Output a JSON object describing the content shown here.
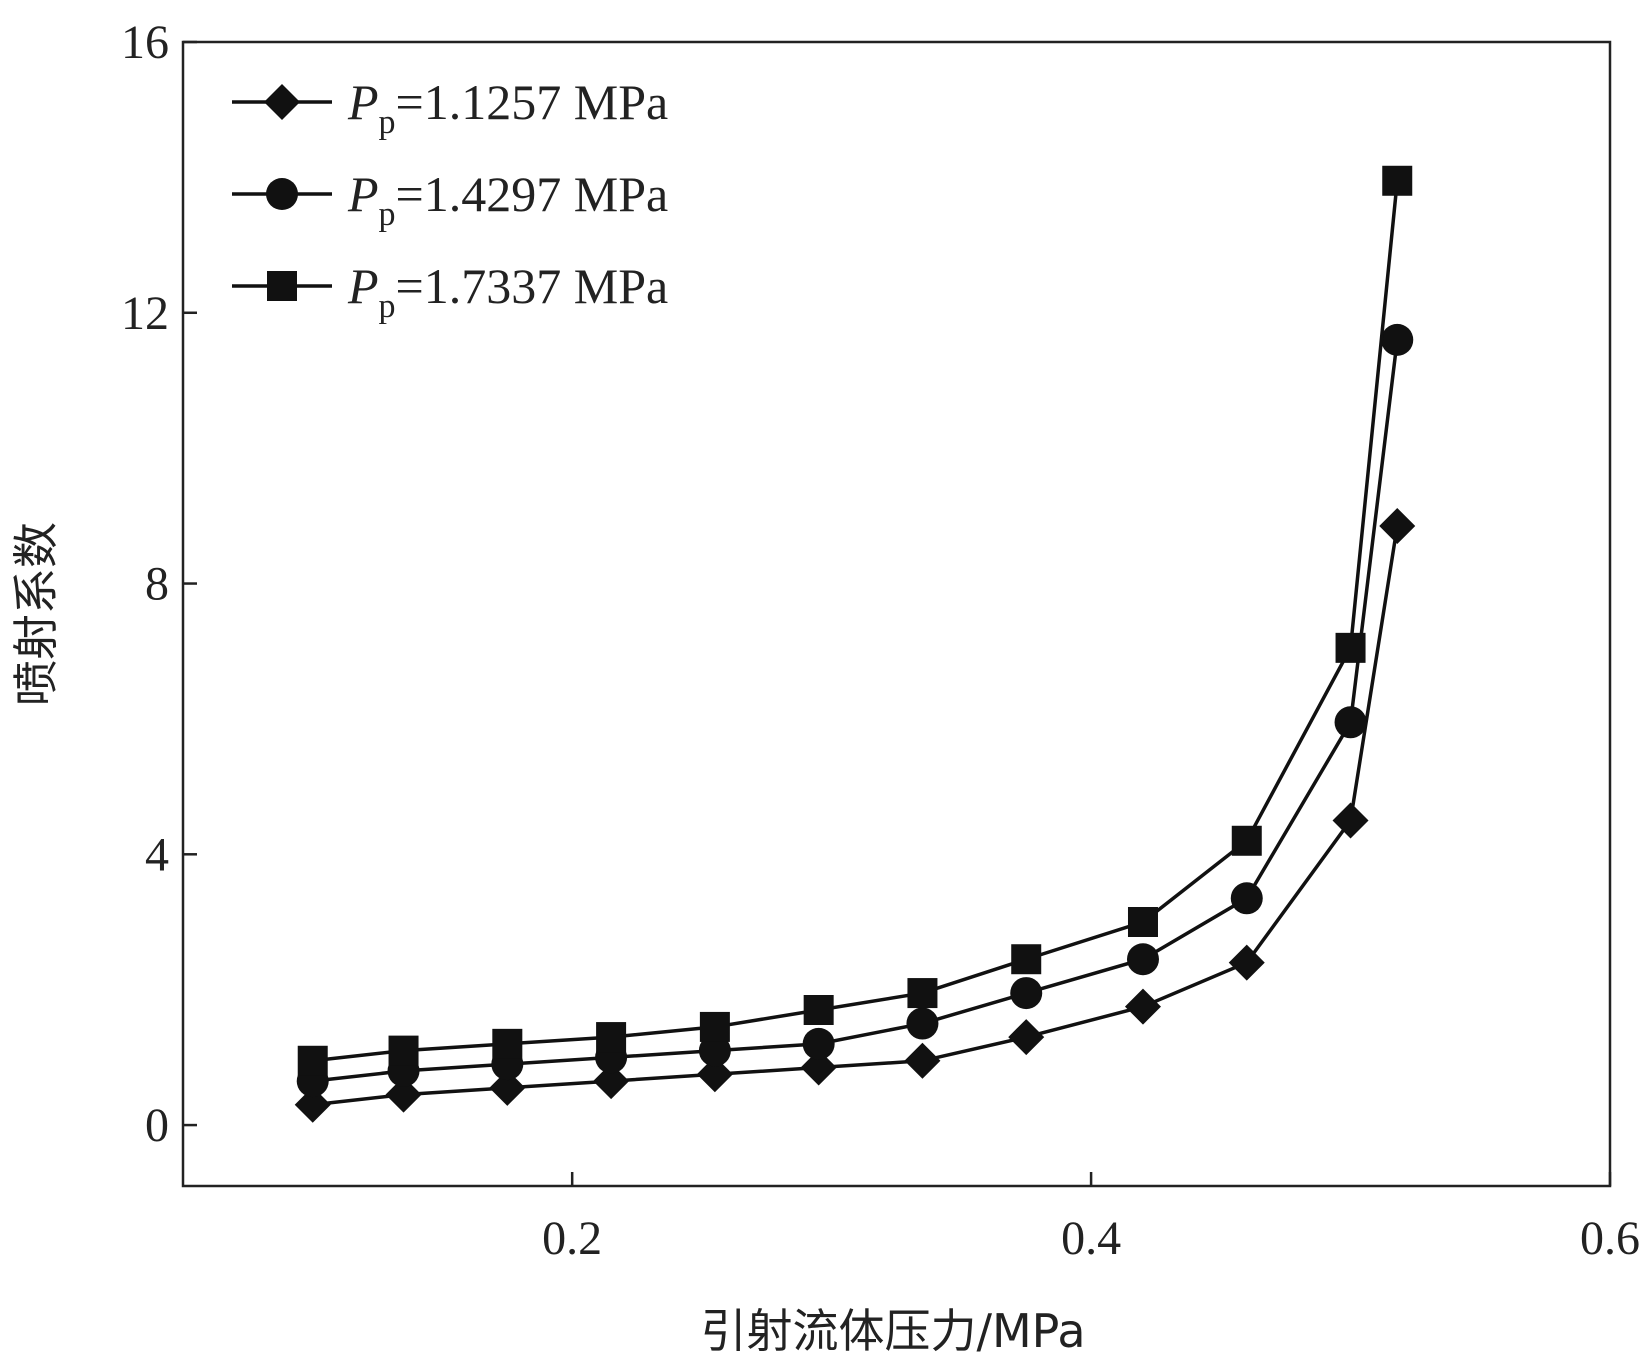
{
  "chart_data": {
    "type": "line",
    "title": "",
    "xlabel": "引射流体压力/MPa",
    "ylabel": "喷射系数",
    "xlim": [
      0.05,
      0.6
    ],
    "ylim": [
      -0.9,
      16
    ],
    "xticks": [
      0.2,
      0.4,
      0.6
    ],
    "xtick_labels": [
      "0.2",
      "0.4",
      "0.6"
    ],
    "yticks": [
      0,
      4,
      8,
      12,
      16
    ],
    "ytick_labels": [
      "0",
      "4",
      "8",
      "12",
      "16"
    ],
    "grid": false,
    "legend_position": "top-left",
    "x": [
      0.1,
      0.135,
      0.175,
      0.215,
      0.255,
      0.295,
      0.335,
      0.375,
      0.42,
      0.46,
      0.5,
      0.518
    ],
    "series": [
      {
        "name_prefix": "P",
        "name_subscript": "p",
        "name_value": "=1.1257 MPa",
        "marker": "diamond",
        "values": [
          0.3,
          0.45,
          0.55,
          0.65,
          0.75,
          0.85,
          0.95,
          1.3,
          1.75,
          2.4,
          4.5,
          8.85
        ]
      },
      {
        "name_prefix": "P",
        "name_subscript": "p",
        "name_value": "=1.4297 MPa",
        "marker": "circle",
        "values": [
          0.65,
          0.8,
          0.9,
          1.0,
          1.1,
          1.2,
          1.5,
          1.95,
          2.45,
          3.35,
          5.95,
          11.6
        ]
      },
      {
        "name_prefix": "P",
        "name_subscript": "p",
        "name_value": "=1.7337 MPa",
        "marker": "square",
        "values": [
          0.95,
          1.1,
          1.2,
          1.3,
          1.45,
          1.7,
          1.95,
          2.45,
          3.0,
          4.2,
          7.05,
          13.95
        ]
      }
    ]
  }
}
